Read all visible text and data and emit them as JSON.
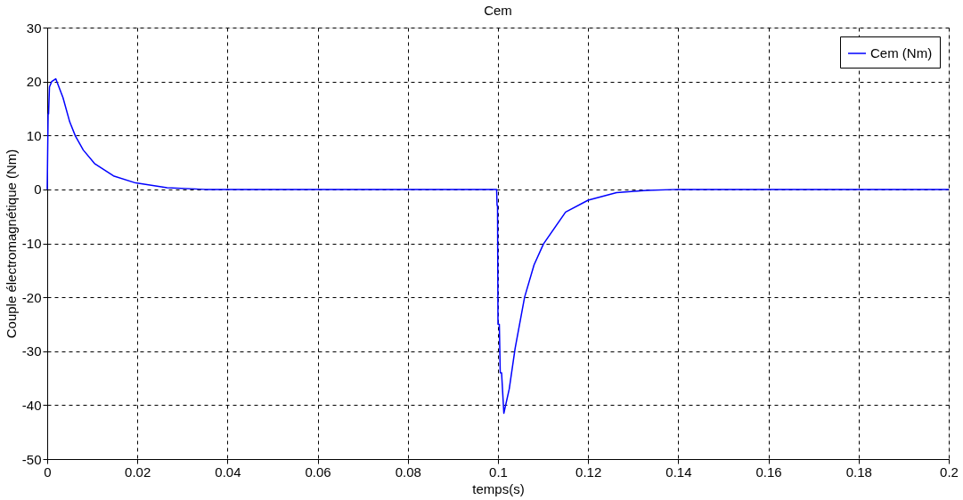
{
  "chart_data": {
    "type": "line",
    "title": "Cem",
    "xlabel": "temps(s)",
    "ylabel": "Couple électromagnétique (Nm)",
    "series": [
      {
        "name": "Cem (Nm)",
        "color": "#0000ff",
        "x": [
          0,
          0.0002,
          0.0003,
          0.0005,
          0.001,
          0.0019,
          0.0035,
          0.005,
          0.00625,
          0.008,
          0.0105,
          0.0147,
          0.0196,
          0.0266,
          0.035,
          0.04,
          0.0997,
          0.0998,
          0.0999,
          0.1,
          0.1003,
          0.1005,
          0.1008,
          0.1013,
          0.1025,
          0.1038,
          0.1059,
          0.108,
          0.1101,
          0.115,
          0.12,
          0.1263,
          0.133,
          0.14,
          0.2
        ],
        "values": [
          0,
          14,
          14,
          19,
          20,
          20.5,
          17,
          12.5,
          9.9,
          7.3,
          4.8,
          2.5,
          1.2,
          0.3,
          0,
          0,
          0,
          -3,
          -3,
          -25,
          -25,
          -34,
          -34,
          -41.5,
          -37,
          -29.5,
          -20,
          -14,
          -10.1,
          -4.2,
          -2.0,
          -0.6,
          -0.2,
          0,
          0
        ]
      }
    ],
    "xlim": [
      0,
      0.2
    ],
    "xticks": [
      0,
      0.02,
      0.04,
      0.06,
      0.08,
      0.1,
      0.12,
      0.14,
      0.16,
      0.18,
      0.2
    ],
    "ylim": [
      -50,
      30
    ],
    "yticks": [
      -50,
      -40,
      -30,
      -20,
      -10,
      0,
      10,
      20,
      30
    ],
    "grid": true,
    "legend": "top right",
    "marker": "none",
    "line_style": "solid"
  }
}
